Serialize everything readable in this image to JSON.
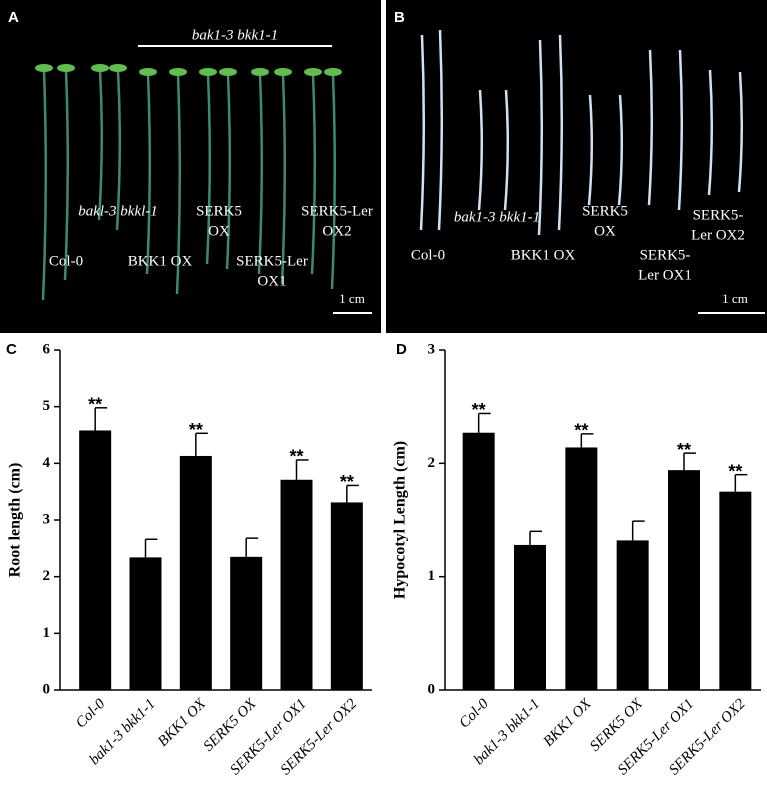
{
  "photo_panels": [
    {
      "panel": "A",
      "background": "#000000",
      "plant_color": "#3c8a73",
      "group_label": "bak1-3 bkk1-1",
      "labels": [
        {
          "lines": [
            "bakl-3 bkkl-1"
          ],
          "italic": true
        },
        {
          "lines": [
            "SERK5",
            "OX"
          ],
          "italic": false
        },
        {
          "lines": [
            "SERK5-Ler",
            "OX2"
          ],
          "italic": false
        },
        {
          "lines": [
            "Col-0"
          ],
          "italic": false
        },
        {
          "lines": [
            "BKK1 OX"
          ],
          "italic": false
        },
        {
          "lines": [
            "SERK5-Ler",
            "OX1"
          ],
          "italic": false
        }
      ],
      "scale_label": "1 cm"
    },
    {
      "panel": "B",
      "background": "#000000",
      "plant_color": "#cfe2f5",
      "labels": [
        {
          "lines": [
            "bak1-3 bkk1-1"
          ],
          "italic": true
        },
        {
          "lines": [
            "SERK5",
            "OX"
          ],
          "italic": false
        },
        {
          "lines": [
            "SERK5-",
            "Ler OX2"
          ],
          "italic": false
        },
        {
          "lines": [
            "Col-0"
          ],
          "italic": false
        },
        {
          "lines": [
            "BKK1 OX"
          ],
          "italic": false
        },
        {
          "lines": [
            "SERK5-",
            "Ler OX1"
          ],
          "italic": false
        }
      ],
      "scale_label": "1 cm"
    }
  ],
  "chart_data": [
    {
      "type": "bar",
      "panel": "C",
      "ylabel": "Root length (cm)",
      "categories": [
        "Col-0",
        "bak1-3 bkk1-1",
        "BKK1 OX",
        "SERK5 OX",
        "SERK5-Ler OX1",
        "SERK5-Ler OX2"
      ],
      "values": [
        4.58,
        2.34,
        4.13,
        2.35,
        3.71,
        3.31
      ],
      "errors": [
        0.4,
        0.32,
        0.4,
        0.33,
        0.35,
        0.3
      ],
      "significance": [
        "**",
        null,
        "**",
        null,
        "**",
        "**"
      ],
      "color": "#000000",
      "ylim": [
        0,
        6
      ],
      "yticks": [
        0,
        1,
        2,
        3,
        4,
        5,
        6
      ],
      "grid": false
    },
    {
      "type": "bar",
      "panel": "D",
      "ylabel": "Hypocotyl Length (cm)",
      "categories": [
        "Col-0",
        "bak1-3 bkk1-1",
        "BKK1 OX",
        "SERK5 OX",
        "SERK5-Ler OX1",
        "SERK5-Ler OX2"
      ],
      "values": [
        2.27,
        1.28,
        2.14,
        1.32,
        1.94,
        1.75
      ],
      "errors": [
        0.17,
        0.12,
        0.12,
        0.17,
        0.15,
        0.15
      ],
      "significance": [
        "**",
        null,
        "**",
        null,
        "**",
        "**"
      ],
      "color": "#000000",
      "ylim": [
        0,
        3
      ],
      "yticks": [
        0,
        1,
        2,
        3
      ],
      "grid": false
    }
  ]
}
